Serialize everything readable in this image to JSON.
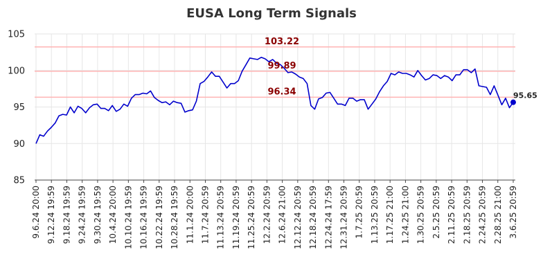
{
  "chart_data": {
    "type": "line",
    "title": "EUSA Long Term Signals",
    "xlabel": "",
    "ylabel": "",
    "ylim": [
      85,
      105
    ],
    "yticks": [
      85,
      90,
      95,
      100,
      105
    ],
    "grid": true,
    "x_tick_labels": [
      "9.6.24 20:00",
      "9.12.24 19:59",
      "9.18.24 19:59",
      "9.24.24 19:59",
      "9.30.24 19:59",
      "10.4.24 20:00",
      "10.10.24 19:59",
      "10.16.24 19:59",
      "10.22.24 19:59",
      "10.28.24 19:59",
      "11.1.24 20:00",
      "11.7.24 20:59",
      "11.13.24 20:59",
      "11.19.24 20:59",
      "11.25.24 20:59",
      "12.2.24 20:59",
      "12.6.24 21:00",
      "12.12.24 20:59",
      "12.18.24 20:59",
      "12.24.24 17:59",
      "12.31.24 20:59",
      "1.7.25 20:59",
      "1.13.25 20:59",
      "1.17.25 21:00",
      "1.24.25 21:00",
      "1.30.25 20:59",
      "2.5.25 20:59",
      "2.11.25 20:59",
      "2.18.25 20:59",
      "2.24.25 20:59",
      "2.28.25 21:00",
      "3.6.25 20:59"
    ],
    "reference_lines": [
      {
        "value": 103.22,
        "label": "103.22",
        "color": "#ffb3b3"
      },
      {
        "value": 99.89,
        "label": "99.89",
        "color": "#ffb3b3"
      },
      {
        "value": 96.34,
        "label": "96.34",
        "color": "#ffb3b3"
      }
    ],
    "series": [
      {
        "color": "#0000cc",
        "values": [
          90.0,
          91.2,
          91.0,
          91.7,
          92.2,
          92.8,
          93.8,
          94.0,
          93.9,
          95.0,
          94.2,
          95.1,
          94.8,
          94.2,
          94.9,
          95.3,
          95.4,
          94.8,
          94.8,
          94.5,
          95.2,
          94.4,
          94.7,
          95.4,
          95.1,
          96.2,
          96.7,
          96.7,
          96.9,
          96.8,
          97.2,
          96.3,
          95.9,
          95.6,
          95.7,
          95.3,
          95.8,
          95.6,
          95.5,
          94.3,
          94.5,
          94.6,
          95.8,
          98.2,
          98.5,
          99.1,
          99.8,
          99.2,
          99.2,
          98.4,
          97.6,
          98.2,
          98.2,
          98.6,
          99.9,
          100.8,
          101.7,
          101.6,
          101.5,
          101.8,
          101.6,
          101.2,
          101.5,
          101.0,
          100.8,
          100.3,
          99.7,
          99.8,
          99.5,
          99.1,
          98.9,
          98.2,
          95.2,
          94.7,
          96.1,
          96.3,
          96.9,
          97.0,
          96.2,
          95.4,
          95.4,
          95.2,
          96.2,
          96.2,
          95.8,
          96.0,
          96.0,
          94.7,
          95.4,
          96.1,
          97.1,
          97.9,
          98.5,
          99.6,
          99.4,
          99.8,
          99.6,
          99.6,
          99.4,
          99.1,
          100.0,
          99.3,
          98.7,
          98.9,
          99.4,
          99.3,
          98.9,
          99.3,
          99.1,
          98.6,
          99.4,
          99.4,
          100.1,
          100.1,
          99.7,
          100.2,
          97.9,
          97.8,
          97.7,
          96.7,
          97.9,
          96.6,
          95.3,
          96.2,
          94.9,
          95.65
        ]
      }
    ],
    "last_value_label": "95.65"
  }
}
